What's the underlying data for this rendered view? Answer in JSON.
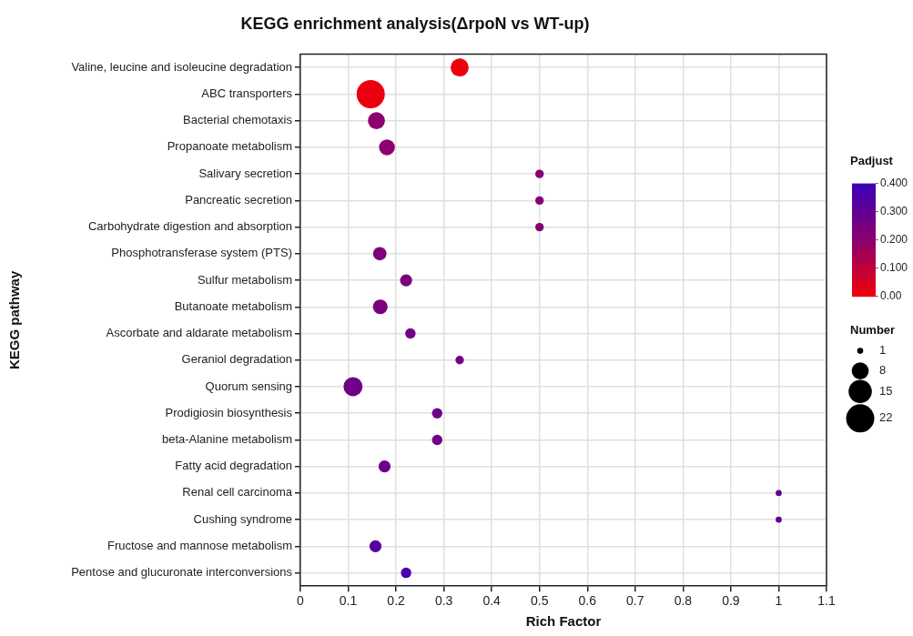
{
  "chart_data": {
    "type": "bubble",
    "title": "KEGG enrichment analysis(ΔrpoN vs WT-up)",
    "xlabel": "Rich Factor",
    "ylabel": "KEGG pathway",
    "orientation": "horizontal",
    "categories": [
      "Valine, leucine and isoleucine degradation",
      "ABC transporters",
      "Bacterial chemotaxis",
      "Propanoate metabolism",
      "Salivary secretion",
      "Pancreatic secretion",
      "Carbohydrate digestion and absorption",
      "Phosphotransferase system (PTS)",
      "Sulfur metabolism",
      "Butanoate metabolism",
      "Ascorbate and aldarate metabolism",
      "Geraniol degradation",
      "Quorum sensing",
      "Prodigiosin biosynthesis",
      "beta-Alanine metabolism",
      "Fatty acid degradation",
      "Renal cell carcinoma",
      "Cushing syndrome",
      "Fructose and mannose metabolism",
      "Pentose and glucuronate interconversions"
    ],
    "values": [
      0.333,
      0.147,
      0.159,
      0.181,
      0.5,
      0.5,
      0.5,
      0.166,
      0.221,
      0.167,
      0.23,
      0.333,
      0.11,
      0.286,
      0.286,
      0.176,
      1,
      1,
      0.157,
      0.221
    ],
    "sizes": [
      9,
      22,
      8,
      7,
      2,
      2,
      2,
      5,
      4,
      6,
      3,
      2,
      10,
      3,
      3,
      4,
      1,
      1,
      4,
      3
    ],
    "cvalues": [
      0.01,
      0.01,
      0.2,
      0.2,
      0.22,
      0.22,
      0.22,
      0.23,
      0.24,
      0.24,
      0.26,
      0.26,
      0.27,
      0.27,
      0.27,
      0.28,
      0.3,
      0.3,
      0.33,
      0.36
    ],
    "xlim": [
      0,
      1.1
    ],
    "xticks": [
      0,
      0.1,
      0.2,
      0.3,
      0.4,
      0.5,
      0.6,
      0.7,
      0.8,
      0.9,
      1,
      1.1
    ],
    "grid": true,
    "clabel": "Padjust",
    "clim": [
      0,
      0.4
    ],
    "cticks": [
      {
        "value": 0,
        "label": "0.00"
      },
      {
        "value": 0.1,
        "label": "0.100"
      },
      {
        "value": 0.2,
        "label": "0.200"
      },
      {
        "value": 0.3,
        "label": "0.300"
      },
      {
        "value": 0.4,
        "label": "0.400"
      }
    ],
    "legend_title": "Number",
    "size_legend": [
      1,
      8,
      15,
      22
    ]
  }
}
